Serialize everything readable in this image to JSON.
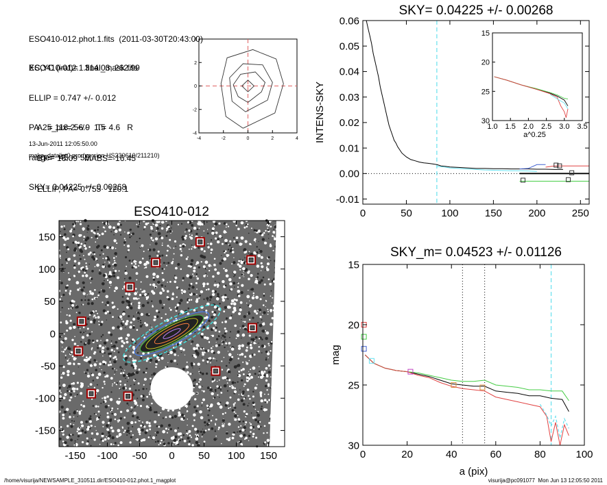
{
  "header": {
    "lines": [
      "ESO410-012.phot.1.fits  (2011-03-30T20:43:00)",
      "ESO410-012.1.final_mask.fits",
      "XC,YC (iraf)=   314.03, 262.99",
      "ELLIP = 0.747 +/- 0.012",
      "PA    = 118.2 +/-   1.5",
      "range=  45.-   55.",
      "SKY= 0.04225 +/- 0.00268",
      "A25_pix= 56.9   T= 4.6   R",
      "BT=  16.09   MABS=-16.45",
      "ELLIP, PA= 0.755   120.1",
      "13-Jun-2011 12:05:50.00",
      "make_datalist0.pro (version HS230610/211210)"
    ]
  },
  "footer": {
    "path": "/home/visurija/NEWSAMPLE_310511.dir/ESO410-012.phot.1_magplot",
    "user": "visurija@pc091077  Mon Jun 13 12:05:50 2011"
  },
  "colors": {
    "cyan": "#66e0ee",
    "red": "#e04040",
    "green": "#44cc44",
    "blue": "#4060d0",
    "magenta": "#c040c0",
    "orange": "#d89040",
    "dark_red": "#a00000"
  },
  "chart_data": [
    {
      "type": "contour",
      "xlim": [
        -4,
        4
      ],
      "ylim": [
        -4,
        4
      ],
      "xticks": [
        "-4",
        "-2",
        "0",
        "2",
        "4"
      ],
      "yticks": [
        "-4",
        "-2",
        "0",
        "2",
        "4"
      ],
      "center": [
        0,
        0
      ],
      "contours": [
        [
          [
            0,
            -0.5
          ],
          [
            0.5,
            0
          ],
          [
            0,
            0.5
          ],
          [
            -0.5,
            0
          ]
        ],
        [
          [
            0,
            -1.4
          ],
          [
            1.1,
            -0.5
          ],
          [
            1.4,
            0.3
          ],
          [
            0.6,
            1.2
          ],
          [
            -0.6,
            1.0
          ],
          [
            -1.2,
            0.1
          ],
          [
            -0.8,
            -0.9
          ]
        ],
        [
          [
            -0.2,
            -2.2
          ],
          [
            1.6,
            -1.2
          ],
          [
            2.0,
            0.3
          ],
          [
            1.2,
            1.8
          ],
          [
            -0.4,
            1.9
          ],
          [
            -1.5,
            0.7
          ],
          [
            -1.3,
            -1.3
          ]
        ],
        [
          [
            -0.4,
            -3.6
          ],
          [
            2.2,
            -2.3
          ],
          [
            2.9,
            0.2
          ],
          [
            2.3,
            2.3
          ],
          [
            0.4,
            3.1
          ],
          [
            -1.7,
            2.4
          ],
          [
            -2.2,
            0.2
          ],
          [
            -1.8,
            -2.6
          ]
        ]
      ]
    },
    {
      "type": "line",
      "title": "SKY= 0.04225 +/- 0.00268",
      "ylabel": "INTENS-SKY",
      "xlim": [
        0,
        260
      ],
      "ylim": [
        -0.012,
        0.06
      ],
      "xticks": [
        "0",
        "50",
        "100",
        "150",
        "200",
        "250"
      ],
      "yticks": [
        "-0.01",
        "0.00",
        "0.01",
        "0.02",
        "0.03",
        "0.04",
        "0.05",
        "0.06"
      ],
      "sky_radius": 85,
      "series": [
        {
          "color": "black",
          "x": [
            4,
            6,
            8,
            10,
            12,
            14,
            16,
            18,
            20,
            22,
            24,
            26,
            28,
            30,
            32,
            34,
            36,
            38,
            40,
            45,
            50,
            55,
            60,
            65,
            70,
            75,
            80,
            85,
            90,
            95,
            100,
            110,
            120,
            130,
            140,
            150,
            160,
            170,
            180,
            190,
            200,
            210,
            220,
            230
          ],
          "y": [
            0.06,
            0.057,
            0.054,
            0.051,
            0.047,
            0.044,
            0.041,
            0.038,
            0.034,
            0.031,
            0.028,
            0.025,
            0.022,
            0.019,
            0.017,
            0.015,
            0.013,
            0.012,
            0.0105,
            0.008,
            0.0065,
            0.0055,
            0.005,
            0.0045,
            0.0042,
            0.004,
            0.0038,
            0.0035,
            0.003,
            0.0028,
            0.0026,
            0.0024,
            0.0022,
            0.002,
            0.002,
            0.0019,
            0.0019,
            0.0018,
            0.0018,
            0.0018,
            0.0017,
            0.0017,
            0.0016,
            0.0016
          ]
        },
        {
          "color": "cyan",
          "x": [
            85,
            95,
            100,
            110,
            120,
            130,
            140,
            150,
            160,
            170,
            180,
            190,
            200
          ],
          "y": [
            0.0028,
            0.0025,
            0.0022,
            0.002,
            0.0018,
            0.0016,
            0.0014,
            0.0013,
            0.0012,
            0.0011,
            0.0011,
            0.001,
            0.0008
          ]
        },
        {
          "color": "blue",
          "x": [
            180,
            190,
            200,
            210
          ],
          "y": [
            0.0018,
            0.002,
            0.0035,
            0.0035
          ]
        },
        {
          "color": "red",
          "x": [
            210,
            220,
            230,
            260
          ],
          "y": [
            0.0025,
            0.003,
            0.003,
            0.003
          ]
        },
        {
          "color": "green",
          "x": [
            180,
            220,
            260
          ],
          "y": [
            -0.003,
            -0.003,
            -0.003
          ]
        },
        {
          "color": "black",
          "x": [
            180,
            260
          ],
          "y": [
            0,
            0
          ]
        }
      ],
      "markers": [
        [
          222,
          0.0033
        ],
        [
          226,
          0.003
        ],
        [
          240,
          0.0003
        ],
        [
          236,
          -0.0024
        ],
        [
          184,
          -0.0026
        ]
      ],
      "inset": {
        "xlabel": "a^0.25",
        "xlim": [
          1.0,
          3.5
        ],
        "ylim": [
          30,
          15
        ],
        "xticks": [
          "1.0",
          "1.5",
          "2.0",
          "2.5",
          "3.0",
          "3.5"
        ],
        "yticks": [
          "15",
          "20",
          "25",
          "30"
        ],
        "series": [
          {
            "color": "black",
            "x": [
              1.05,
              1.4,
              1.8,
              2.2,
              2.6,
              2.8,
              3.0,
              3.1
            ],
            "y": [
              22.5,
              23.1,
              23.9,
              24.6,
              25.3,
              25.8,
              26.5,
              27.5
            ]
          },
          {
            "color": "green",
            "x": [
              1.05,
              1.4,
              1.8,
              2.2,
              2.6,
              2.8,
              3.0,
              3.1
            ],
            "y": [
              22.5,
              23.1,
              23.9,
              24.5,
              25.2,
              25.6,
              26.2,
              26.3
            ]
          },
          {
            "color": "red",
            "x": [
              1.05,
              1.4,
              1.8,
              2.2,
              2.6,
              2.8,
              2.9,
              3.0,
              3.05,
              3.1
            ],
            "y": [
              22.5,
              23.1,
              23.9,
              24.6,
              25.4,
              26.0,
              27.5,
              28.5,
              29.5,
              28.0
            ]
          },
          {
            "color": "cyan",
            "x": [
              2.6,
              2.8,
              3.0,
              3.1
            ],
            "y": [
              25.5,
              26.3,
              27.0,
              28.0
            ]
          }
        ]
      }
    },
    {
      "type": "image",
      "title": "ESO410-012",
      "xlim": [
        -175,
        175
      ],
      "ylim": [
        -175,
        175
      ],
      "xticks": [
        "-150",
        "-100",
        "-50",
        "0",
        "50",
        "100",
        "150"
      ],
      "yticks": [
        "-150",
        "-100",
        "-50",
        "0",
        "50",
        "100",
        "150"
      ],
      "masked_stars": [
        [
          44,
          142
        ],
        [
          -25,
          110
        ],
        [
          123,
          114
        ],
        [
          -65,
          72
        ],
        [
          -140,
          19
        ],
        [
          125,
          9
        ],
        [
          -145,
          -27
        ],
        [
          68,
          -58
        ],
        [
          -125,
          -93
        ],
        [
          -68,
          -97
        ]
      ],
      "mask_circle": {
        "x": 0,
        "y": -85,
        "r": 33
      },
      "ellipses": {
        "center": [
          0,
          0
        ],
        "pa_deg": 118.2,
        "ellip": 0.747,
        "a": [
          15,
          30,
          45,
          55,
          65,
          85
        ]
      }
    },
    {
      "type": "line",
      "title": "SKY_m=  0.04523 +/- 0.01126",
      "xlabel": "a (pix)",
      "ylabel": "mag",
      "xlim": [
        0,
        100
      ],
      "ylim": [
        30,
        15
      ],
      "xticks": [
        "0",
        "20",
        "40",
        "60",
        "80",
        "100"
      ],
      "yticks": [
        "15",
        "20",
        "25",
        "30"
      ],
      "range_lines": [
        45,
        55
      ],
      "sky_radius": 85,
      "series": [
        {
          "color": "black",
          "x": [
            1,
            5,
            10,
            15,
            20,
            25,
            30,
            35,
            40,
            45,
            50,
            55,
            60,
            65,
            70,
            75,
            80,
            85,
            90,
            93
          ],
          "y": [
            22.5,
            23.2,
            23.6,
            23.8,
            23.9,
            24.1,
            24.3,
            24.6,
            24.9,
            25.0,
            25.1,
            25.1,
            25.5,
            25.6,
            25.7,
            25.9,
            25.9,
            26.1,
            26.2,
            27.2
          ]
        },
        {
          "color": "green",
          "x": [
            1,
            5,
            10,
            15,
            20,
            25,
            30,
            35,
            40,
            45,
            50,
            55,
            60,
            65,
            70,
            75,
            80,
            85,
            90,
            93
          ],
          "y": [
            22.5,
            23.2,
            23.6,
            23.8,
            23.9,
            24.0,
            24.2,
            24.4,
            24.6,
            24.7,
            24.7,
            24.6,
            25.0,
            25.1,
            25.2,
            25.4,
            25.4,
            25.5,
            25.5,
            26.3
          ]
        },
        {
          "color": "red",
          "x": [
            1,
            5,
            10,
            15,
            20,
            25,
            30,
            35,
            40,
            45,
            50,
            55,
            60,
            65,
            70,
            75,
            80,
            83,
            85,
            87,
            89,
            91,
            93
          ],
          "y": [
            22.5,
            23.2,
            23.6,
            23.8,
            23.9,
            24.2,
            24.4,
            24.8,
            25.1,
            25.3,
            25.4,
            25.5,
            26.0,
            26.2,
            26.4,
            26.6,
            26.8,
            27.6,
            29.7,
            28.1,
            30.0,
            28.3,
            29.2
          ]
        },
        {
          "color": "cyan",
          "x": [
            80,
            83,
            85,
            87,
            89,
            91,
            93
          ],
          "y": [
            26.6,
            27.5,
            28.4,
            27.6,
            29.4,
            27.8,
            28.6
          ]
        }
      ],
      "markers": [
        {
          "color": "red",
          "x": 0.5,
          "y": 20.0
        },
        {
          "color": "green",
          "x": 0.5,
          "y": 21.0
        },
        {
          "color": "blue",
          "x": 0.5,
          "y": 22.0
        },
        {
          "color": "cyan",
          "x": 4,
          "y": 23.0
        },
        {
          "color": "magenta",
          "x": 21.5,
          "y": 23.9
        },
        {
          "color": "orange",
          "x": 41,
          "y": 25.0
        },
        {
          "color": "orange",
          "x": 54,
          "y": 25.2
        }
      ]
    }
  ]
}
